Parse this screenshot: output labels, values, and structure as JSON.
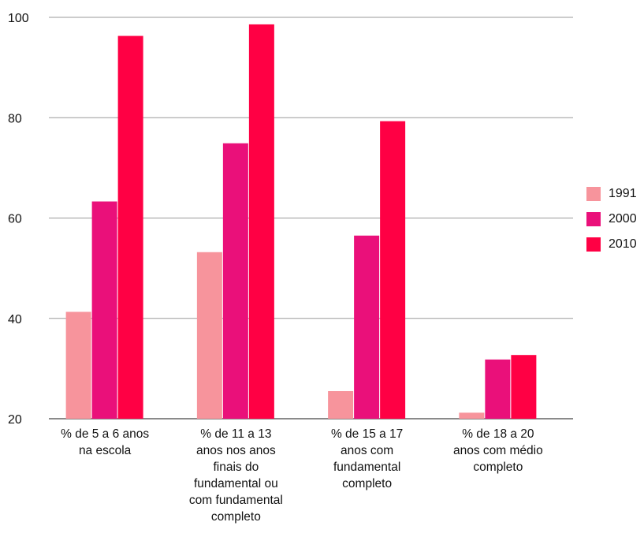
{
  "chart_data": {
    "type": "bar",
    "title": "",
    "xlabel": "",
    "ylabel": "",
    "ylim": [
      20,
      100
    ],
    "yticks": [
      20,
      40,
      60,
      80,
      100
    ],
    "grid": true,
    "legend_position": "right",
    "categories": [
      "% de 5 a 6 anos\nna escola",
      "% de 11 a 13\nanos nos anos\nfinais do\nfundamental ou\ncom fundamental\ncompleto",
      "% de 15 a 17\nanos com\nfundamental\ncompleto",
      "% de 18 a 20\nanos com médio\ncompleto"
    ],
    "series": [
      {
        "name": "1991",
        "color": "#f7949c",
        "values": [
          41.3,
          53.2,
          25.5,
          21.2
        ]
      },
      {
        "name": "2000",
        "color": "#ea107a",
        "values": [
          63.3,
          74.9,
          56.5,
          31.8
        ]
      },
      {
        "name": "2010",
        "color": "#ff0044",
        "values": [
          96.3,
          98.6,
          79.3,
          32.7
        ]
      }
    ]
  }
}
